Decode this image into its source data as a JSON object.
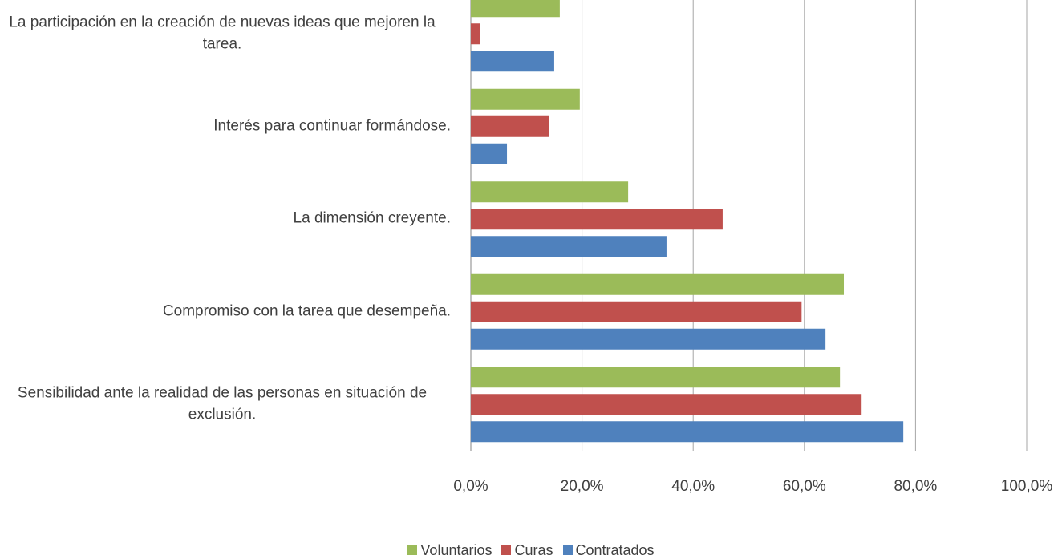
{
  "chart_data": {
    "type": "bar",
    "orientation": "horizontal",
    "categories": [
      "La participación en la creación de nuevas ideas que mejoren la tarea.",
      "Interés para continuar formándose.",
      "La dimensión creyente.",
      "Compromiso con la tarea que desempeña.",
      "Sensibilidad ante la realidad de las personas en situación de exclusión."
    ],
    "series": [
      {
        "name": "Voluntarios",
        "color": "#9bbb59",
        "values": [
          16.0,
          19.6,
          28.3,
          67.1,
          66.4
        ]
      },
      {
        "name": "Curas",
        "color": "#c0504d",
        "values": [
          1.7,
          14.1,
          45.3,
          59.5,
          70.3
        ]
      },
      {
        "name": "Contratados",
        "color": "#4f81bd",
        "values": [
          15.0,
          6.5,
          35.2,
          63.8,
          77.8
        ]
      }
    ],
    "xlim": [
      0,
      100
    ],
    "xticks": [
      {
        "value": 0,
        "label": "0,0%"
      },
      {
        "value": 20,
        "label": "20,0%"
      },
      {
        "value": 40,
        "label": "40,0%"
      },
      {
        "value": 60,
        "label": "60,0%"
      },
      {
        "value": 80,
        "label": "80,0%"
      },
      {
        "value": 100,
        "label": "100,0%"
      }
    ],
    "grid": true,
    "legend": "bottom"
  }
}
